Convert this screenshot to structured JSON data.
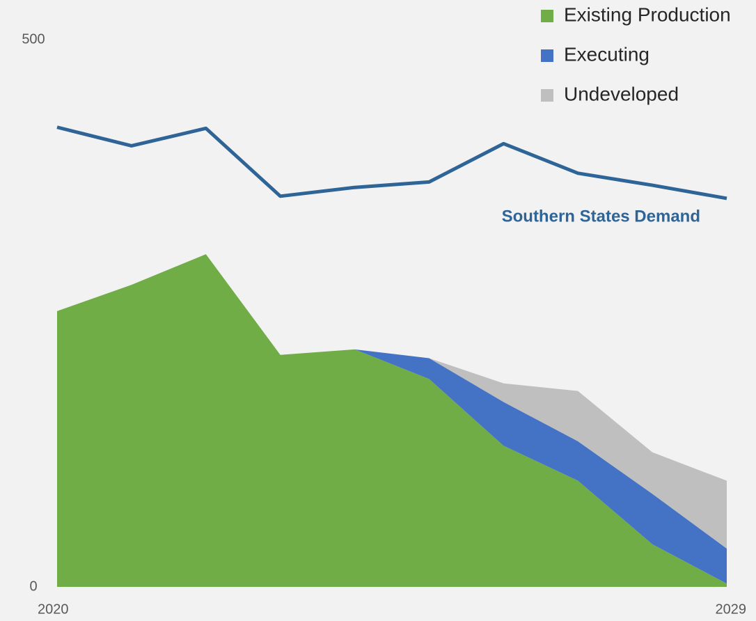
{
  "chart_data": {
    "type": "stacked_area",
    "categories": [
      "2020",
      null,
      null,
      null,
      null,
      null,
      null,
      null,
      null,
      "2029"
    ],
    "series": [
      {
        "name": "Existing Production",
        "color": "#70ad47",
        "values": [
          252,
          276,
          304,
          212,
          217,
          190,
          129,
          97,
          39,
          3
        ]
      },
      {
        "name": "Executing",
        "color": "#4472c4",
        "values": [
          0,
          0,
          0,
          0,
          0,
          19,
          40,
          36,
          46,
          32
        ]
      },
      {
        "name": "Undeveloped",
        "color": "#bfbfbf",
        "values": [
          0,
          0,
          0,
          0,
          0,
          0,
          17,
          46,
          38,
          62
        ]
      }
    ],
    "line": {
      "label": "Southern States Demand",
      "color": "#2f6497",
      "values": [
        420,
        403,
        419,
        357,
        365,
        370,
        405,
        378,
        367,
        355
      ]
    },
    "ylim": [
      0,
      500
    ],
    "yticks": [
      0,
      500
    ],
    "grid": false,
    "legend": "top-right"
  }
}
